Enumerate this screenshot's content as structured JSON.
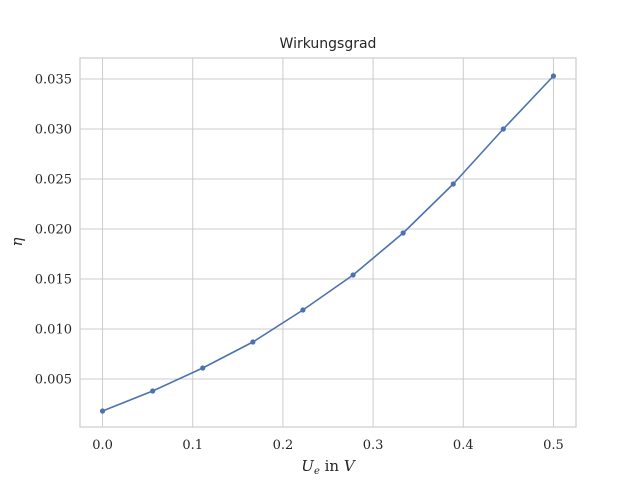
{
  "chart_data": {
    "type": "line",
    "title": "Wirkungsgrad",
    "xlabel_var": "U",
    "xlabel_sub": "e",
    "xlabel_rest": " in ",
    "xlabel_unit": "V",
    "ylabel": "η",
    "xlim": [
      -0.025,
      0.525
    ],
    "ylim": [
      0.0002,
      0.0371
    ],
    "xticks": [
      0.0,
      0.1,
      0.2,
      0.3,
      0.4,
      0.5
    ],
    "xtick_labels": [
      "0.0",
      "0.1",
      "0.2",
      "0.3",
      "0.4",
      "0.5"
    ],
    "yticks": [
      0.005,
      0.01,
      0.015,
      0.02,
      0.025,
      0.03,
      0.035
    ],
    "ytick_labels": [
      "0.005",
      "0.010",
      "0.015",
      "0.020",
      "0.025",
      "0.030",
      "0.035"
    ],
    "grid": true,
    "series": [
      {
        "color": "#4c72b0",
        "x": [
          0.0,
          0.0556,
          0.1111,
          0.1667,
          0.2222,
          0.2778,
          0.3333,
          0.3889,
          0.4444,
          0.5
        ],
        "y": [
          0.0018,
          0.0038,
          0.0061,
          0.0087,
          0.0119,
          0.0154,
          0.0196,
          0.0245,
          0.03,
          0.0353
        ]
      }
    ]
  }
}
